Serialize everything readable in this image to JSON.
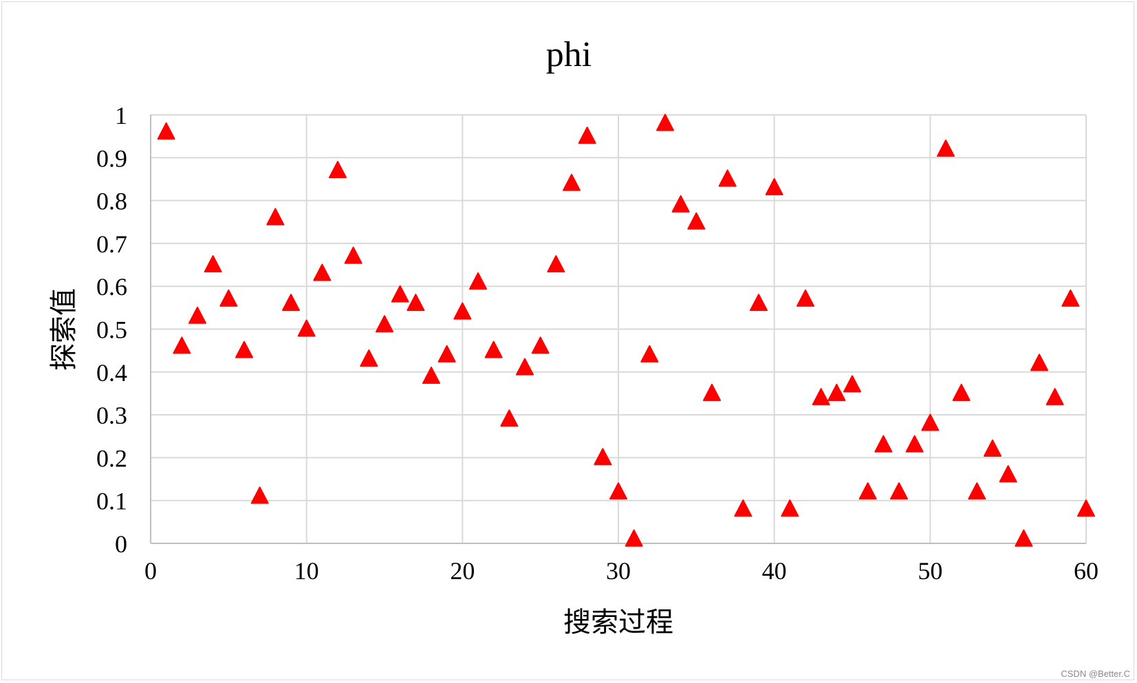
{
  "watermark": "CSDN @Better.C",
  "chart_data": {
    "type": "scatter",
    "title": "phi",
    "xlabel": "搜索过程",
    "ylabel": "探索值",
    "xlim": [
      0,
      60
    ],
    "ylim": [
      0,
      1
    ],
    "xticks": [
      "0",
      "10",
      "20",
      "30",
      "40",
      "50",
      "60"
    ],
    "yticks": [
      "0",
      "0.1",
      "0.2",
      "0.3",
      "0.4",
      "0.5",
      "0.6",
      "0.7",
      "0.8",
      "0.9",
      "1"
    ],
    "grid": true,
    "legend": "none",
    "marker": "triangle",
    "marker_color": "#ff0000",
    "x": [
      1,
      2,
      3,
      4,
      5,
      6,
      7,
      8,
      9,
      10,
      11,
      12,
      13,
      14,
      15,
      16,
      17,
      18,
      19,
      20,
      21,
      22,
      23,
      24,
      25,
      26,
      27,
      28,
      29,
      30,
      31,
      32,
      33,
      34,
      35,
      36,
      37,
      38,
      39,
      40,
      41,
      42,
      43,
      44,
      45,
      46,
      47,
      48,
      49,
      50,
      51,
      52,
      53,
      54,
      55,
      56,
      57,
      58,
      59,
      60
    ],
    "y": [
      0.96,
      0.46,
      0.53,
      0.65,
      0.57,
      0.45,
      0.11,
      0.76,
      0.56,
      0.5,
      0.63,
      0.87,
      0.67,
      0.43,
      0.51,
      0.58,
      0.56,
      0.39,
      0.44,
      0.54,
      0.61,
      0.45,
      0.29,
      0.41,
      0.46,
      0.65,
      0.84,
      0.95,
      0.2,
      0.12,
      0.01,
      0.44,
      0.98,
      0.79,
      0.75,
      0.35,
      0.85,
      0.08,
      0.56,
      0.83,
      0.08,
      0.57,
      0.34,
      0.35,
      0.37,
      0.12,
      0.23,
      0.12,
      0.23,
      0.28,
      0.92,
      0.35,
      0.12,
      0.22,
      0.16,
      0.01,
      0.42,
      0.34,
      0.57,
      0.08
    ]
  }
}
